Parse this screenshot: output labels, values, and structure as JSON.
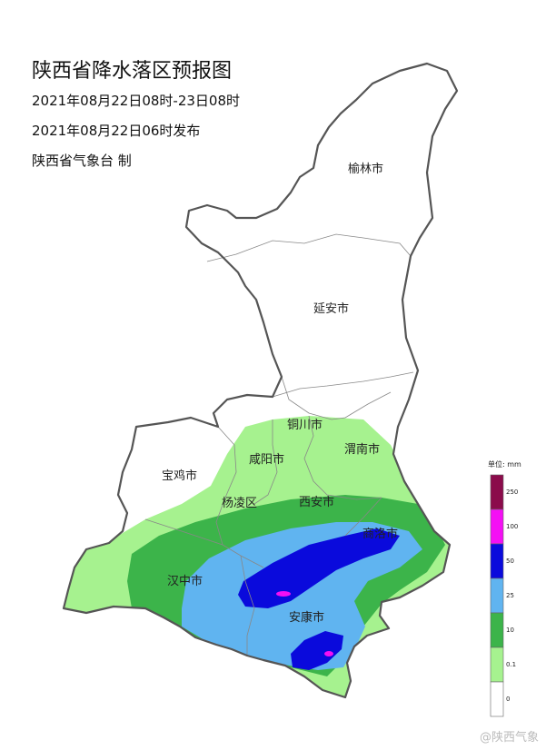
{
  "header": {
    "title": "陕西省降水落区预报图",
    "period": "2021年08月22日08时-23日08时",
    "issued": "2021年08月22日06时发布",
    "producer": "陕西省气象台 制"
  },
  "cities": [
    {
      "name": "榆林市"
    },
    {
      "name": "延安市"
    },
    {
      "name": "铜川市"
    },
    {
      "name": "咸阳市"
    },
    {
      "name": "渭南市"
    },
    {
      "name": "宝鸡市"
    },
    {
      "name": "杨凌区"
    },
    {
      "name": "西安市"
    },
    {
      "name": "商洛市"
    },
    {
      "name": "汉中市"
    },
    {
      "name": "安康市"
    }
  ],
  "legend": {
    "unit": "单位: mm",
    "ticks": [
      "250",
      "100",
      "50",
      "25",
      "10",
      "0.1",
      "0"
    ],
    "colors": [
      "#8b0b4b",
      "#f40ff4",
      "#0a0adc",
      "#60b4f0",
      "#3cb44a",
      "#a6f28f",
      "#ffffff"
    ]
  },
  "watermark": "@陕西气象",
  "colors": {
    "rain_0_1": "#a6f28f",
    "rain_10": "#3cb44a",
    "rain_25": "#60b4f0",
    "rain_50": "#0a0adc",
    "rain_100": "#f40ff4",
    "border": "#555555"
  }
}
